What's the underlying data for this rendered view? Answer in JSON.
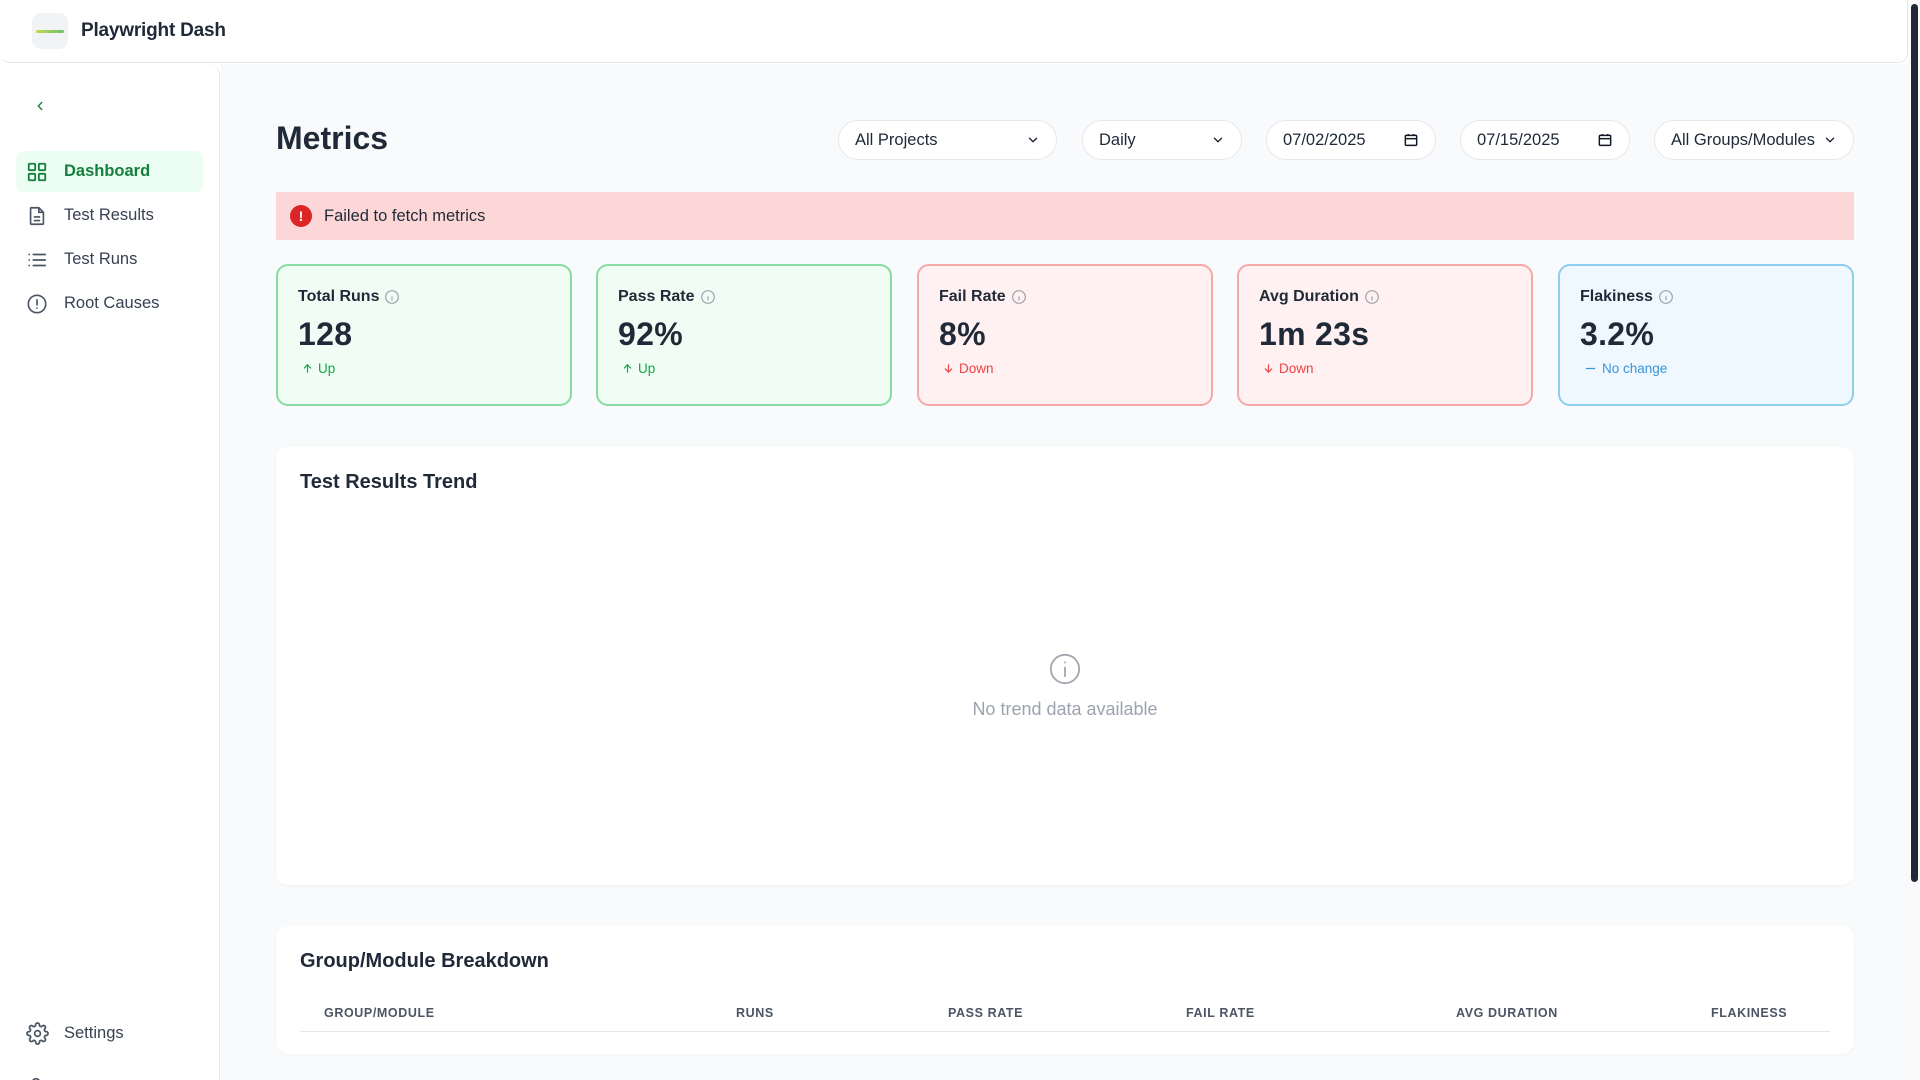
{
  "app": {
    "title": "Playwright Dash"
  },
  "sidebar": {
    "items": [
      {
        "label": "Dashboard",
        "icon": "dashboard-grid-icon",
        "active": true
      },
      {
        "label": "Test Results",
        "icon": "document-icon",
        "active": false
      },
      {
        "label": "Test Runs",
        "icon": "list-icon",
        "active": false
      },
      {
        "label": "Root Causes",
        "icon": "alert-circle-icon",
        "active": false
      }
    ],
    "settings_label": "Settings"
  },
  "page": {
    "title": "Metrics"
  },
  "filters": {
    "project": "All Projects",
    "interval": "Daily",
    "start_date": "07/02/2025",
    "end_date": "07/15/2025",
    "group": "All Groups/Modules"
  },
  "error": {
    "message": "Failed to fetch metrics"
  },
  "metrics": [
    {
      "label": "Total Runs",
      "value": "128",
      "trend": "Up",
      "tone": "green"
    },
    {
      "label": "Pass Rate",
      "value": "92%",
      "trend": "Up",
      "tone": "green"
    },
    {
      "label": "Fail Rate",
      "value": "8%",
      "trend": "Down",
      "tone": "red"
    },
    {
      "label": "Avg Duration",
      "value": "1m 23s",
      "trend": "Down",
      "tone": "red"
    },
    {
      "label": "Flakiness",
      "value": "3.2%",
      "trend": "No change",
      "tone": "blue"
    }
  ],
  "trend_panel": {
    "title": "Test Results Trend",
    "empty_message": "No trend data available"
  },
  "breakdown": {
    "title": "Group/Module Breakdown",
    "columns": [
      "GROUP/MODULE",
      "RUNS",
      "PASS RATE",
      "FAIL RATE",
      "AVG DURATION",
      "FLAKINESS"
    ]
  },
  "colors": {
    "accent": "#15803d",
    "error_bg": "#fdd7d7",
    "up": "#16a34a",
    "down": "#ef4444",
    "flat": "#3b94d6"
  }
}
